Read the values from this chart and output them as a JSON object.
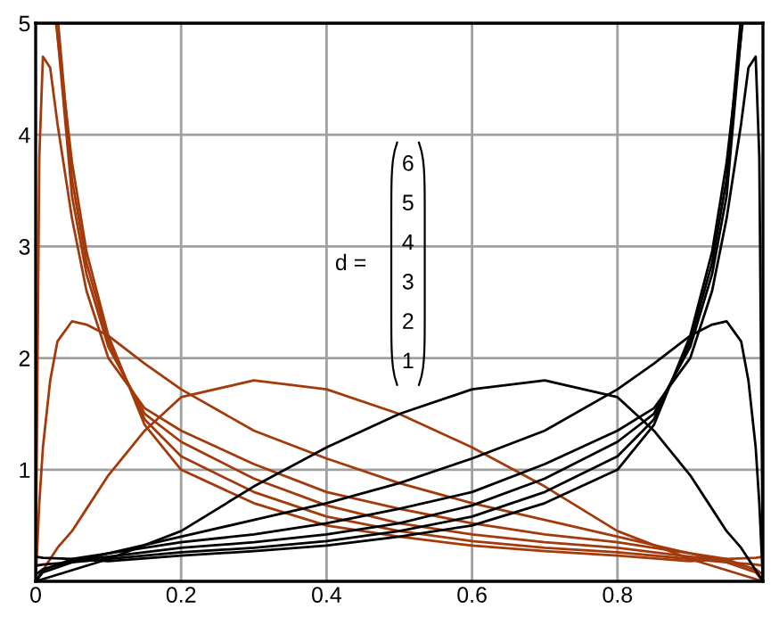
{
  "chart_data": {
    "type": "line",
    "xlim": [
      0,
      1
    ],
    "ylim": [
      0,
      5
    ],
    "xticks": [
      0,
      0.2,
      0.4,
      0.6,
      0.8
    ],
    "yticks": [
      1,
      2,
      3,
      4,
      5
    ],
    "grid": true,
    "legend": false,
    "marker": "none",
    "line_style": "solid",
    "annotations": [
      "d =",
      "6",
      "5",
      "4",
      "3",
      "2",
      "1"
    ],
    "series": [
      {
        "color": "#a33a0b",
        "x": [
          0,
          0.005,
          0.01,
          0.02,
          0.03,
          0.05,
          0.07,
          0.1,
          0.15,
          0.2,
          0.3,
          0.4,
          0.5,
          0.6,
          0.7,
          0.8,
          0.9,
          0.95,
          0.99,
          1.0
        ],
        "values": [
          0,
          0.05,
          0.1,
          0.2,
          0.3,
          0.45,
          0.65,
          0.95,
          1.35,
          1.65,
          1.8,
          1.72,
          1.5,
          1.2,
          0.85,
          0.45,
          0.2,
          0.1,
          0.02,
          0
        ]
      },
      {
        "color": "#a33a0b",
        "x": [
          0,
          0.005,
          0.01,
          0.02,
          0.03,
          0.05,
          0.07,
          0.1,
          0.15,
          0.2,
          0.3,
          0.4,
          0.5,
          0.6,
          0.7,
          0.8,
          0.9,
          0.95,
          0.99,
          1.0
        ],
        "values": [
          0,
          0.7,
          1.2,
          1.8,
          2.15,
          2.33,
          2.3,
          2.2,
          1.95,
          1.72,
          1.35,
          1.1,
          0.88,
          0.7,
          0.55,
          0.4,
          0.25,
          0.17,
          0.08,
          0
        ]
      },
      {
        "color": "#a33a0b",
        "x": [
          0,
          0.005,
          0.01,
          0.02,
          0.03,
          0.05,
          0.07,
          0.1,
          0.15,
          0.2,
          0.3,
          0.4,
          0.5,
          0.6,
          0.7,
          0.8,
          0.9,
          0.95,
          0.99,
          1.0
        ],
        "values": [
          0,
          3.8,
          4.7,
          4.6,
          4.1,
          3.25,
          2.6,
          2.0,
          1.55,
          1.35,
          1.05,
          0.8,
          0.65,
          0.52,
          0.42,
          0.35,
          0.25,
          0.2,
          0.1,
          0
        ]
      },
      {
        "color": "#a33a0b",
        "x": [
          0.03,
          0.05,
          0.07,
          0.1,
          0.15,
          0.2,
          0.3,
          0.4,
          0.5,
          0.6,
          0.7,
          0.8,
          0.9,
          0.95,
          0.99,
          1.0
        ],
        "values": [
          4.9,
          3.45,
          2.75,
          2.1,
          1.5,
          1.25,
          0.92,
          0.68,
          0.52,
          0.42,
          0.35,
          0.3,
          0.22,
          0.18,
          0.11,
          0.06
        ]
      },
      {
        "color": "#a33a0b",
        "x": [
          0.031,
          0.05,
          0.07,
          0.1,
          0.15,
          0.2,
          0.3,
          0.4,
          0.5,
          0.6,
          0.7,
          0.8,
          0.9,
          0.95,
          0.99,
          1.0
        ],
        "values": [
          5.0,
          3.6,
          2.85,
          2.15,
          1.45,
          1.12,
          0.8,
          0.58,
          0.45,
          0.36,
          0.3,
          0.26,
          0.2,
          0.17,
          0.15,
          0.14
        ]
      },
      {
        "color": "#a33a0b",
        "x": [
          0.028,
          0.05,
          0.07,
          0.1,
          0.15,
          0.2,
          0.3,
          0.4,
          0.5,
          0.6,
          0.7,
          0.8,
          0.9,
          0.95,
          0.99,
          1.0
        ],
        "values": [
          5.0,
          3.75,
          2.95,
          2.2,
          1.4,
          1.0,
          0.7,
          0.5,
          0.4,
          0.32,
          0.27,
          0.23,
          0.18,
          0.2,
          0.21,
          0.22
        ]
      },
      {
        "color": "#000000",
        "x": [
          0,
          0.01,
          0.05,
          0.1,
          0.2,
          0.3,
          0.4,
          0.5,
          0.6,
          0.7,
          0.8,
          0.85,
          0.9,
          0.93,
          0.95,
          0.97,
          0.98,
          0.99,
          0.995,
          1.0
        ],
        "values": [
          0,
          0.02,
          0.1,
          0.2,
          0.45,
          0.85,
          1.2,
          1.5,
          1.72,
          1.8,
          1.65,
          1.35,
          0.95,
          0.65,
          0.45,
          0.3,
          0.2,
          0.1,
          0.05,
          0
        ]
      },
      {
        "color": "#000000",
        "x": [
          0,
          0.01,
          0.05,
          0.1,
          0.2,
          0.3,
          0.4,
          0.5,
          0.6,
          0.7,
          0.8,
          0.85,
          0.9,
          0.93,
          0.95,
          0.97,
          0.98,
          0.99,
          0.995,
          1.0
        ],
        "values": [
          0,
          0.08,
          0.17,
          0.25,
          0.4,
          0.55,
          0.7,
          0.88,
          1.1,
          1.35,
          1.72,
          1.95,
          2.2,
          2.3,
          2.33,
          2.15,
          1.8,
          1.2,
          0.7,
          0
        ]
      },
      {
        "color": "#000000",
        "x": [
          0,
          0.01,
          0.05,
          0.1,
          0.2,
          0.3,
          0.4,
          0.5,
          0.6,
          0.7,
          0.8,
          0.85,
          0.9,
          0.93,
          0.95,
          0.97,
          0.98,
          0.99,
          0.995,
          1.0
        ],
        "values": [
          0,
          0.1,
          0.2,
          0.25,
          0.35,
          0.42,
          0.52,
          0.65,
          0.8,
          1.05,
          1.35,
          1.55,
          2.0,
          2.6,
          3.25,
          4.1,
          4.6,
          4.7,
          3.8,
          0
        ]
      },
      {
        "color": "#000000",
        "x": [
          0,
          0.01,
          0.05,
          0.1,
          0.2,
          0.3,
          0.4,
          0.5,
          0.6,
          0.7,
          0.8,
          0.85,
          0.9,
          0.93,
          0.95,
          0.97
        ],
        "values": [
          0.06,
          0.11,
          0.18,
          0.22,
          0.3,
          0.35,
          0.42,
          0.52,
          0.68,
          0.92,
          1.25,
          1.5,
          2.1,
          2.75,
          3.45,
          4.9
        ]
      },
      {
        "color": "#000000",
        "x": [
          0,
          0.01,
          0.05,
          0.1,
          0.2,
          0.3,
          0.4,
          0.5,
          0.6,
          0.7,
          0.8,
          0.85,
          0.9,
          0.93,
          0.95,
          0.969
        ],
        "values": [
          0.14,
          0.15,
          0.17,
          0.2,
          0.26,
          0.3,
          0.36,
          0.45,
          0.58,
          0.8,
          1.12,
          1.45,
          2.15,
          2.85,
          3.6,
          5.0
        ]
      },
      {
        "color": "#000000",
        "x": [
          0,
          0.01,
          0.05,
          0.1,
          0.2,
          0.3,
          0.4,
          0.5,
          0.6,
          0.7,
          0.8,
          0.85,
          0.9,
          0.93,
          0.95,
          0.972
        ],
        "values": [
          0.22,
          0.21,
          0.2,
          0.18,
          0.23,
          0.27,
          0.32,
          0.4,
          0.5,
          0.7,
          1.0,
          1.4,
          2.2,
          2.95,
          3.75,
          5.0
        ]
      }
    ]
  }
}
